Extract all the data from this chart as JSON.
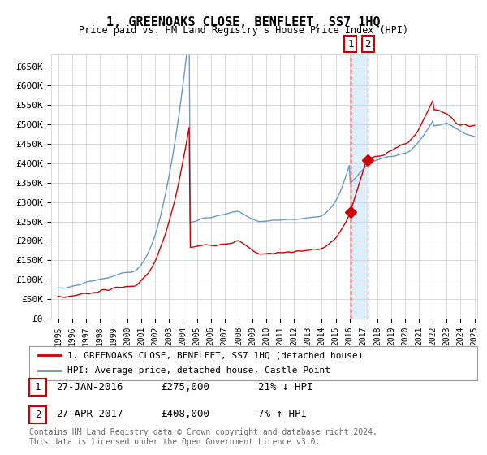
{
  "title": "1, GREENOAKS CLOSE, BENFLEET, SS7 1HQ",
  "subtitle": "Price paid vs. HM Land Registry's House Price Index (HPI)",
  "legend_line1": "1, GREENOAKS CLOSE, BENFLEET, SS7 1HQ (detached house)",
  "legend_line2": "HPI: Average price, detached house, Castle Point",
  "table_row1": [
    "1",
    "27-JAN-2016",
    "£275,000",
    "21% ↓ HPI"
  ],
  "table_row2": [
    "2",
    "27-APR-2017",
    "£408,000",
    "7% ↑ HPI"
  ],
  "footnote": "Contains HM Land Registry data © Crown copyright and database right 2024.\nThis data is licensed under the Open Government Licence v3.0.",
  "sale1_date_idx": 252,
  "sale1_price": 275000,
  "sale1_year": 2016.07,
  "sale2_date_idx": 265,
  "sale2_price": 408000,
  "sale2_year": 2017.32,
  "red_color": "#cc0000",
  "blue_color": "#6699cc",
  "highlight_color": "#ddeeff",
  "grid_color": "#cccccc",
  "background_color": "#ffffff",
  "ylim": [
    0,
    680000
  ],
  "yticks": [
    0,
    50000,
    100000,
    150000,
    200000,
    250000,
    300000,
    350000,
    400000,
    450000,
    500000,
    550000,
    600000,
    650000
  ],
  "x_start_year": 1995,
  "x_end_year": 2025
}
